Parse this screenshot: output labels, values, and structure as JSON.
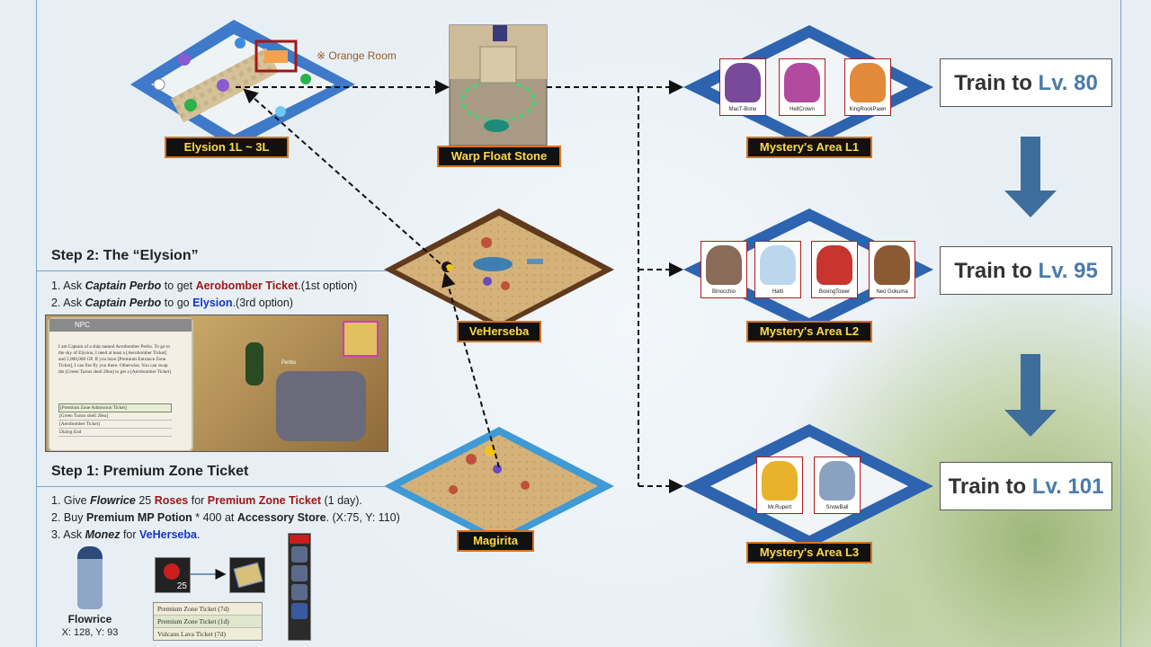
{
  "locations": {
    "elysion": "Elysion 1L ~ 3L",
    "warp": "Warp Float Stone",
    "veherseba": "VeHerseba",
    "magirita": "Magirita",
    "orange_room_note": "※ Orange Room"
  },
  "areas": [
    {
      "label": "Mystery's Area L1",
      "monsters": [
        "MacT-Bone",
        "HellCrown",
        "KingRookPawn"
      ]
    },
    {
      "label": "Mystery's Area L2",
      "monsters": [
        "Binocchio",
        "Hatti",
        "BoxingTower",
        "Neo Gokuma"
      ]
    },
    {
      "label": "Mystery's Area L3",
      "monsters": [
        "Mr.Rupert",
        "SnowBall"
      ]
    }
  ],
  "train": [
    {
      "prefix": "Train to",
      "level": "Lv. 80"
    },
    {
      "prefix": "Train to",
      "level": "Lv. 95"
    },
    {
      "prefix": "Train to",
      "level": "Lv. 101"
    }
  ],
  "step2": {
    "title": "Step 2: The “Elysion”",
    "line1": {
      "num": "1.",
      "a": "Ask",
      "who": "Captain Perbo",
      "b": "to get",
      "item": "Aerobomber Ticket",
      "c": ".(1st option)"
    },
    "line2": {
      "num": "2.",
      "a": "Ask",
      "who": "Captain Perbo",
      "b": "to go",
      "place": "Elysion",
      "c": ".(3rd option)"
    }
  },
  "dialog": {
    "header": "NPC",
    "text": "I am Captain of a ship named Aerobomber Perbo. To go to the sky of Elysion, I need at least a [Aerobomber Ticket] and 2,000,000 GP. If you have [Premium Entrance Zone Ticket], I can fire fly you there. Otherwise, You can swap the [Green Turtos shell 20ea] to get a [Aerobomber Ticket]",
    "options": [
      "[Premium Zone Admission Ticket]",
      "[Green Turtos shell 20ea]",
      "[Aerobomber Ticket]",
      "Dialog End"
    ],
    "npc_name": "Perbo"
  },
  "step1": {
    "title": "Step 1: Premium Zone Ticket",
    "line1": {
      "num": "1.",
      "a": "Give",
      "who": "Flowrice",
      "b": "25",
      "item1": "Roses",
      "c": "for",
      "item2": "Premium Zone Ticket",
      "d": "(1 day)."
    },
    "line2": {
      "num": "2.",
      "a": "Buy",
      "item": "Premium MP Potion",
      "b": "* 400 at",
      "store": "Accessory Store",
      "c": ". (X:75, Y: 110)"
    },
    "line3": {
      "num": "3.",
      "a": "Ask",
      "who": "Monez",
      "b": "for",
      "place": "VeHerseba",
      "c": "."
    }
  },
  "flowrice": {
    "name": "Flowrice",
    "coords": "X: 128, Y: 93"
  },
  "rose_count": "25",
  "tickets": [
    "Premium Zone Ticket (7d)",
    "Premium Zone Ticket (1d)",
    "Vulcans Lava Ticket (7d)"
  ],
  "colors": {
    "accent_blue": "#4a7baa",
    "arrow_blue": "#3f6e9c",
    "label_border": "#d8741f",
    "label_text": "#ffd84a",
    "card_border": "#b11c1c"
  }
}
